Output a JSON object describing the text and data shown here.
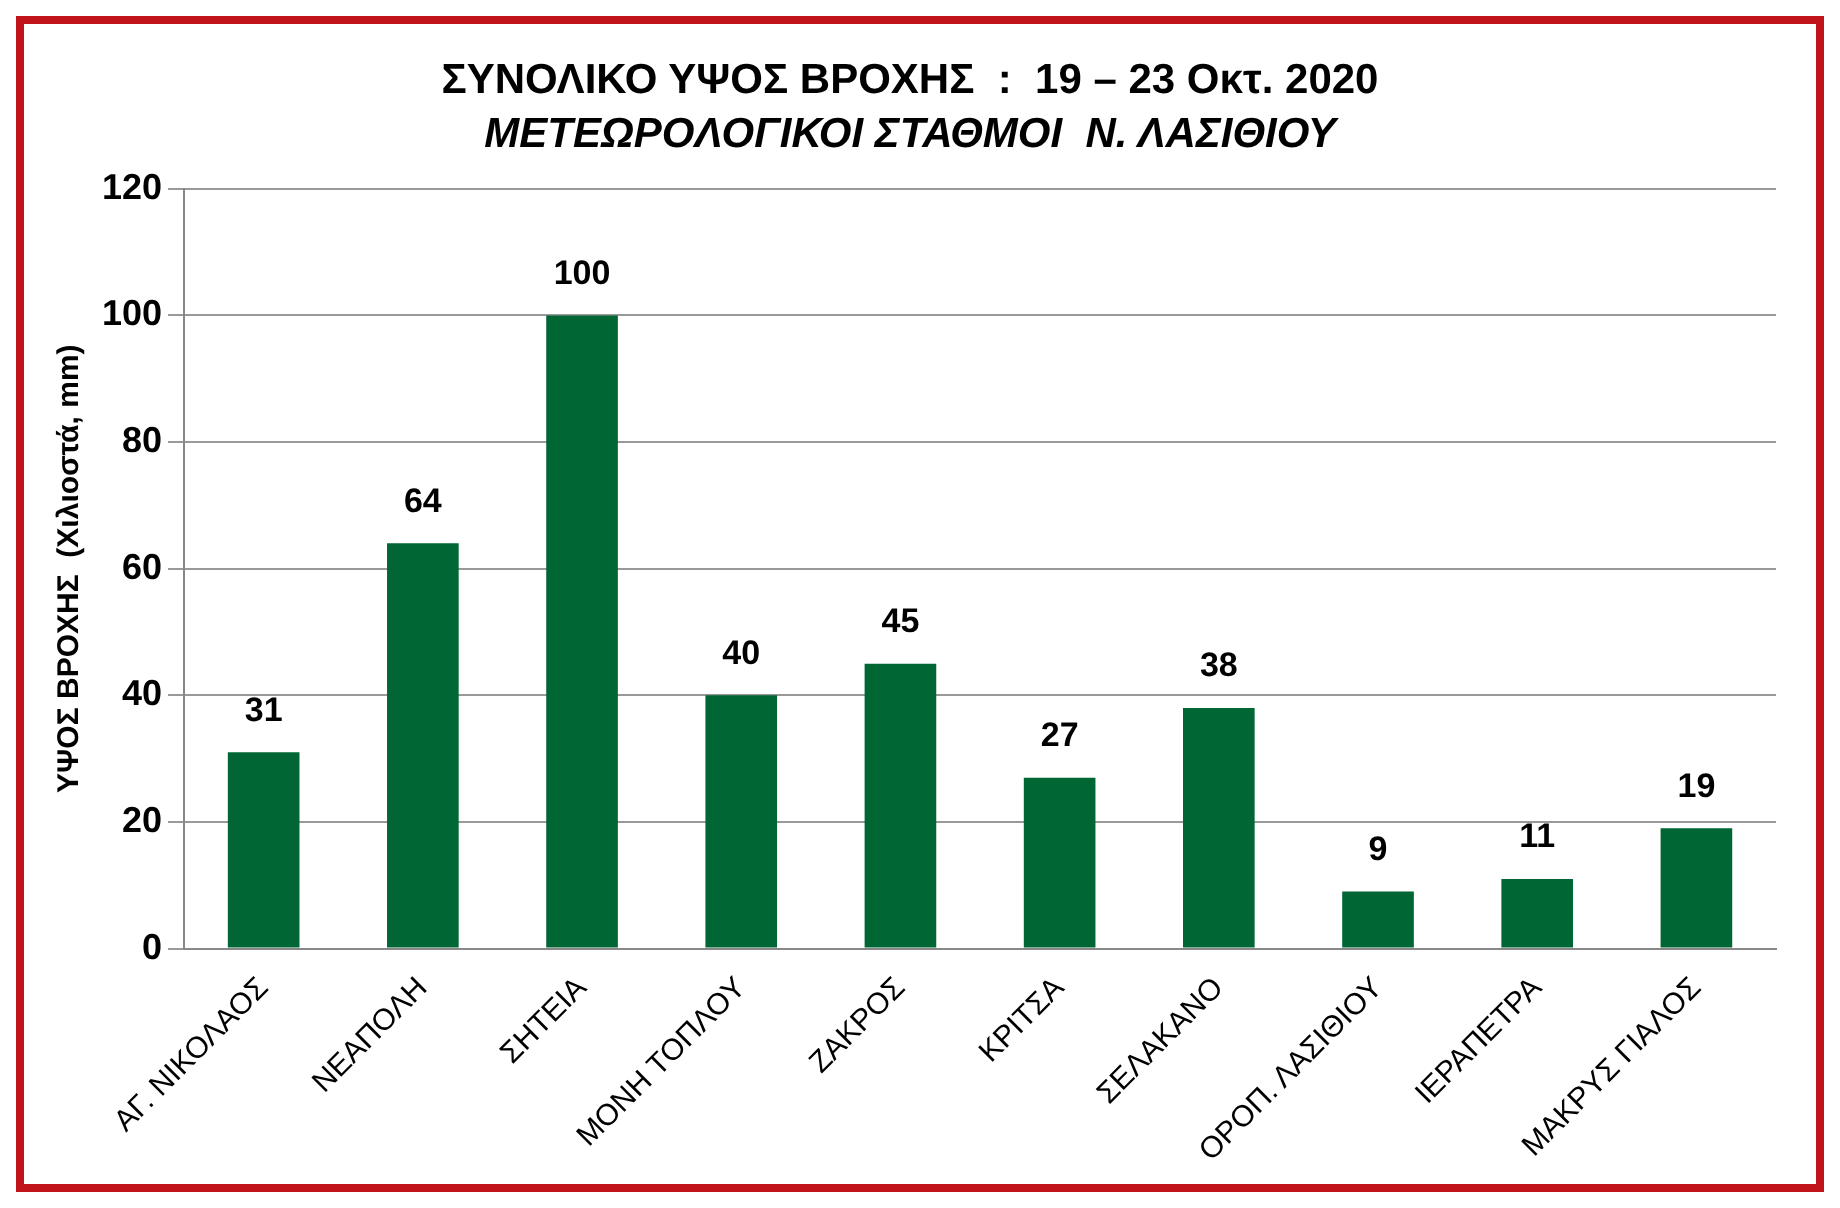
{
  "chart_data": {
    "type": "bar",
    "title": "ΣΥΝΟΛΙΚΟ ΥΨΟΣ ΒΡΟΧΗΣ  :  19 – 23 Οκτ. 2020",
    "subtitle": "ΜΕΤΕΩΡΟΛΟΓΙΚΟΙ ΣΤΑΘΜΟΙ  Ν. ΛΑΣΙΘΙΟΥ",
    "ylabel": "ΥΨΟΣ ΒΡΟΧΗΣ  (Χιλιοστά, mm)",
    "categories": [
      "ΑΓ. ΝΙΚΟΛΑΟΣ",
      "ΝΕΑΠΟΛΗ",
      "ΣΗΤΕΙΑ",
      "ΜΟΝΗ ΤΟΠΛΟΥ",
      "ΖΑΚΡΟΣ",
      "ΚΡΙΤΣΑ",
      "ΣΕΛΑΚΑΝΟ",
      "ΟΡΟΠ. ΛΑΣΙΘΙΟΥ",
      "ΙΕΡΑΠΕΤΡΑ",
      "ΜΑΚΡΥΣ ΓΙΑΛΟΣ"
    ],
    "values": [
      31,
      64,
      100,
      40,
      45,
      27,
      38,
      9,
      11,
      19
    ],
    "color": "#006633",
    "ylim": [
      0,
      120
    ],
    "yticks": [
      0,
      20,
      40,
      60,
      80,
      100,
      120
    ],
    "grid": "y",
    "data_labels": true,
    "legend": false
  }
}
